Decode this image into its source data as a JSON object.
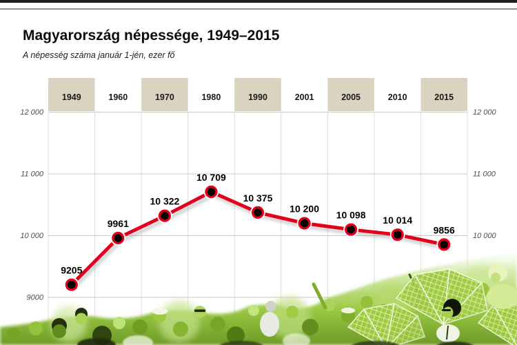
{
  "window": {
    "top_bar_color": "#1f1f1f",
    "divider_color": "#8f8f8f"
  },
  "header": {
    "title": "Magyarország népessége, 1949–2015",
    "subtitle": "A népesség száma január 1-jén, ezer fő"
  },
  "chart_data": {
    "type": "line",
    "title": "Magyarország népessége, 1949–2015",
    "subtitle": "A népesség száma január 1-jén, ezer fő",
    "unit": "ezer fő",
    "categories": [
      "1949",
      "1960",
      "1970",
      "1980",
      "1990",
      "2001",
      "2005",
      "2010",
      "2015"
    ],
    "values": [
      9205,
      9961,
      10322,
      10709,
      10375,
      10200,
      10098,
      10014,
      9856
    ],
    "value_labels": [
      "9205",
      "9961",
      "10 322",
      "10 709",
      "10 375",
      "10 200",
      "10 098",
      "10 014",
      "9856"
    ],
    "highlighted_columns": [
      true,
      false,
      true,
      false,
      true,
      false,
      true,
      false,
      true
    ],
    "y_axis": {
      "ylim": [
        9000,
        12000
      ],
      "ticks": [
        9000,
        10000,
        11000,
        12000
      ],
      "tick_labels_left": [
        "9000",
        "10 000",
        "11 000",
        "12 000"
      ],
      "ticks_right": [
        10000,
        11000,
        12000
      ],
      "tick_labels_right": [
        "10 000",
        "11 000",
        "12 000"
      ]
    },
    "grid": true,
    "legend": null,
    "colors": {
      "line": "#e2001a",
      "marker_core": "#000000",
      "marker_ring": "#e2001a",
      "header_band": "#d9d3c0",
      "grid_h": "#c9c9c9",
      "grid_v": "#dcdcdc",
      "tick_text": "#4d4d4d",
      "year_text": "#1a1a1a",
      "value_text": "#000000"
    }
  }
}
